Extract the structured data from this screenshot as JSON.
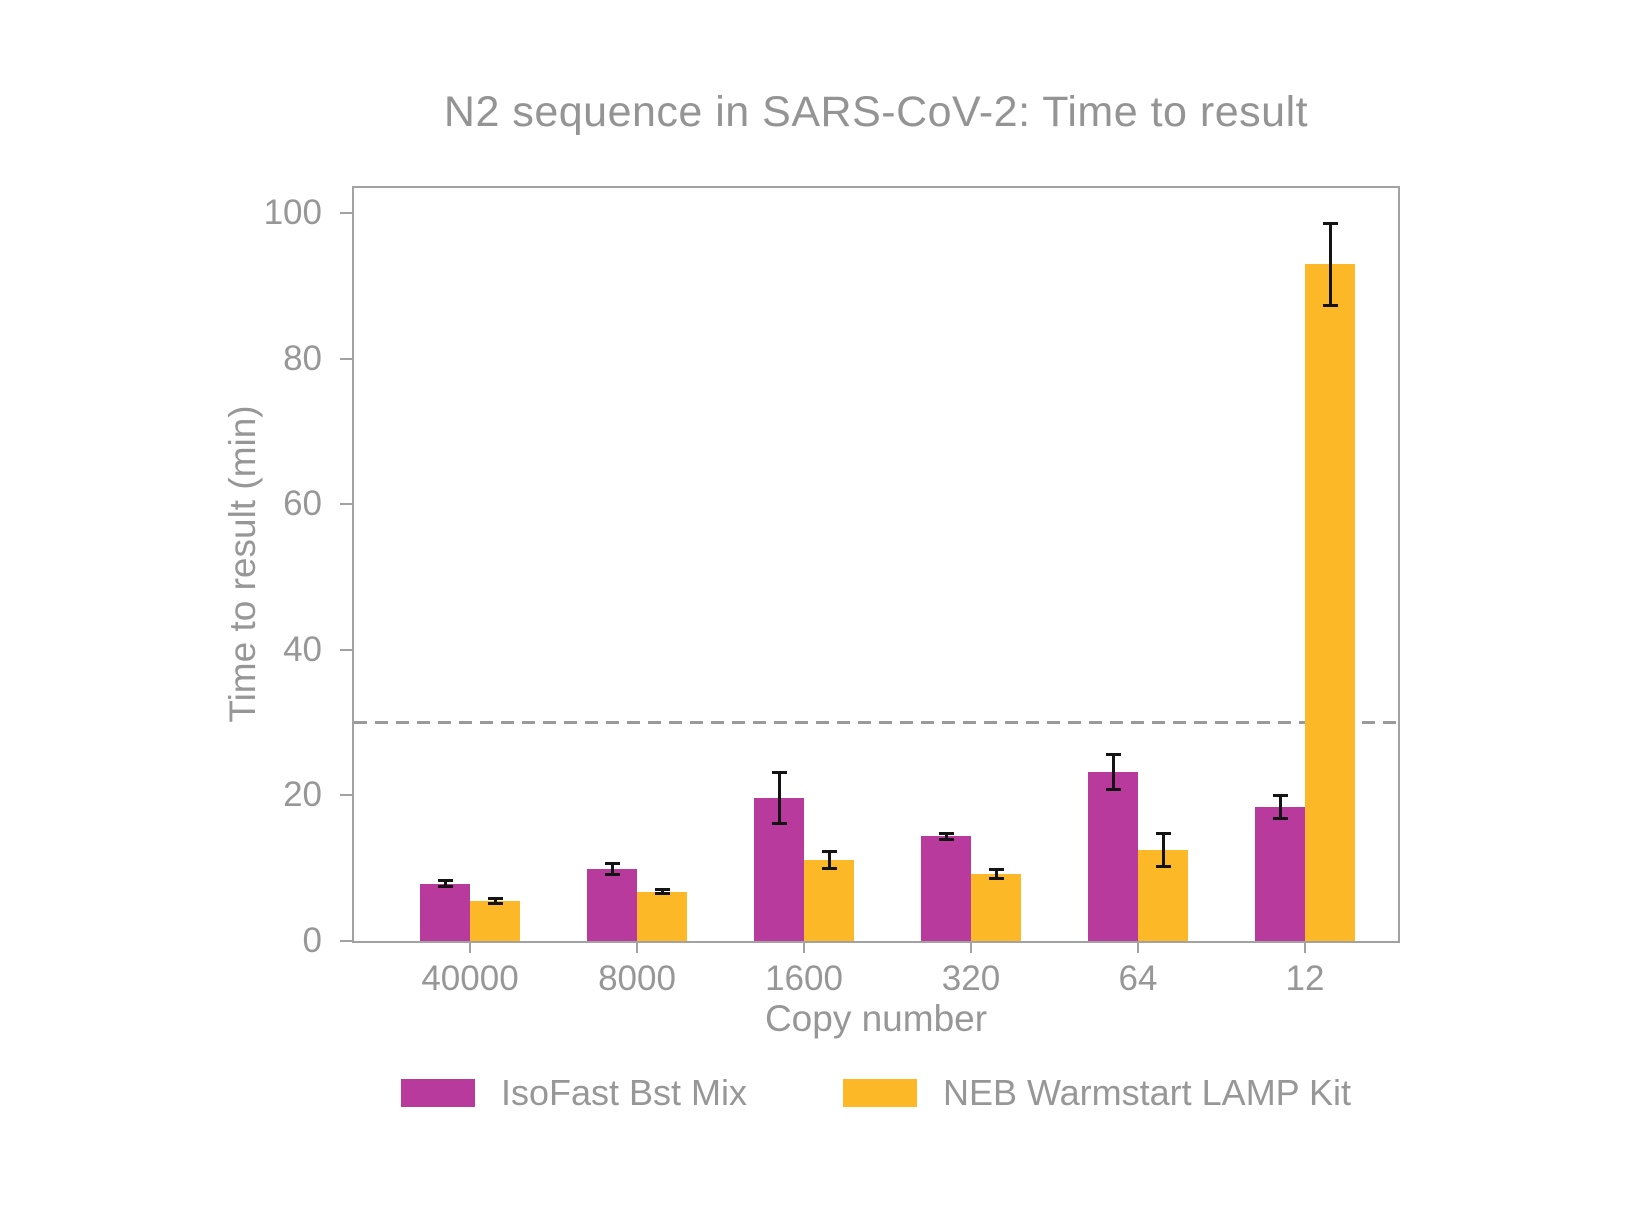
{
  "chart_data": {
    "type": "bar",
    "title": "N2 sequence in SARS-CoV-2: Time to result",
    "xlabel": "Copy number",
    "ylabel": "Time to result (min)",
    "categories": [
      "40000",
      "8000",
      "1600",
      "320",
      "64",
      "12"
    ],
    "series": [
      {
        "name": "IsoFast Bst Mix",
        "color": "#B83A9C",
        "values": [
          7.9,
          9.9,
          19.7,
          14.4,
          23.2,
          18.4
        ],
        "errors": [
          0.4,
          0.8,
          3.5,
          0.4,
          2.4,
          1.6
        ]
      },
      {
        "name": "NEB Warmstart LAMP Kit",
        "color": "#FCB827",
        "values": [
          5.5,
          6.8,
          11.1,
          9.2,
          12.5,
          93.0
        ],
        "errors": [
          0.3,
          0.3,
          1.2,
          0.6,
          2.3,
          5.6
        ]
      }
    ],
    "yticks": [
      0,
      20,
      40,
      60,
      80,
      100
    ],
    "ylim": [
      0,
      103.5
    ],
    "threshold_line": {
      "value": 30,
      "style": "dashed",
      "color": "#9A9A9A"
    },
    "legend_position": "bottom",
    "grid": false,
    "error_bar_color": "#141414",
    "text_color": "#979797",
    "axis_color": "#A2A2A2"
  }
}
